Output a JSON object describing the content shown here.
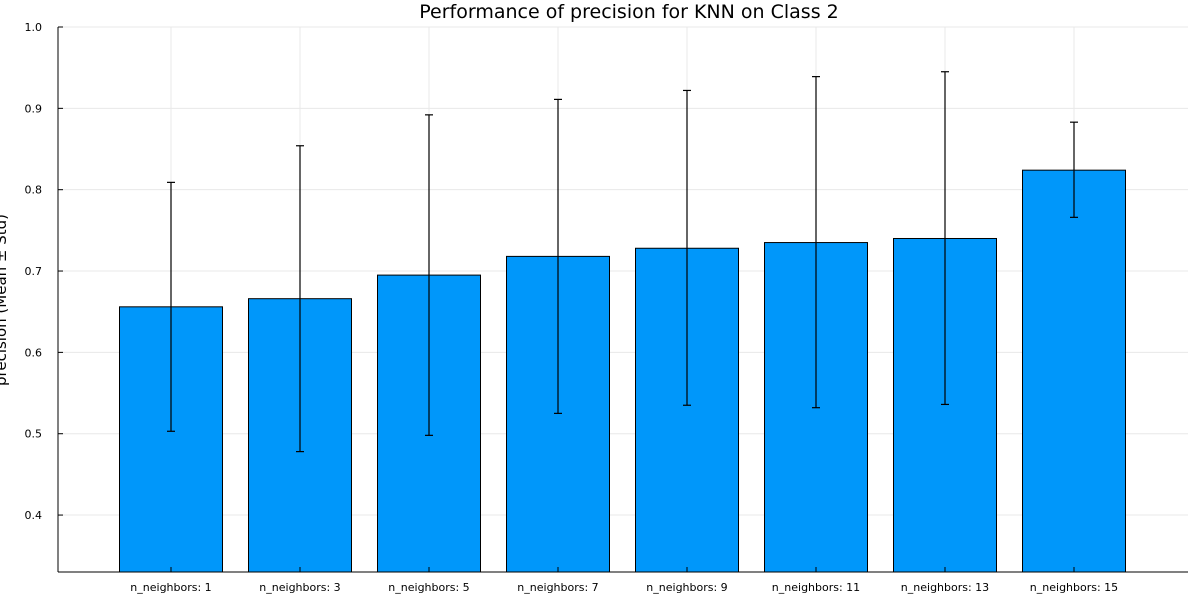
{
  "chart_data": {
    "type": "bar",
    "title": "Performance of precision for KNN on Class 2",
    "xlabel": "",
    "ylabel": "precision (Mean ± Std)",
    "categories": [
      "n_neighbors: 1",
      "n_neighbors: 3",
      "n_neighbors: 5",
      "n_neighbors: 7",
      "n_neighbors: 9",
      "n_neighbors: 11",
      "n_neighbors: 13",
      "n_neighbors: 15"
    ],
    "values": [
      0.656,
      0.666,
      0.695,
      0.718,
      0.728,
      0.735,
      0.74,
      0.824
    ],
    "error_low": [
      0.503,
      0.478,
      0.498,
      0.525,
      0.535,
      0.532,
      0.536,
      0.766
    ],
    "error_high": [
      0.809,
      0.854,
      0.892,
      0.911,
      0.922,
      0.939,
      0.945,
      0.883
    ],
    "ylim": [
      0.33,
      1.0
    ],
    "yticks": [
      "0.4",
      "0.5",
      "0.6",
      "0.7",
      "0.8",
      "0.9",
      "1.0"
    ],
    "grid": true,
    "bar_color": "#0097fa"
  }
}
